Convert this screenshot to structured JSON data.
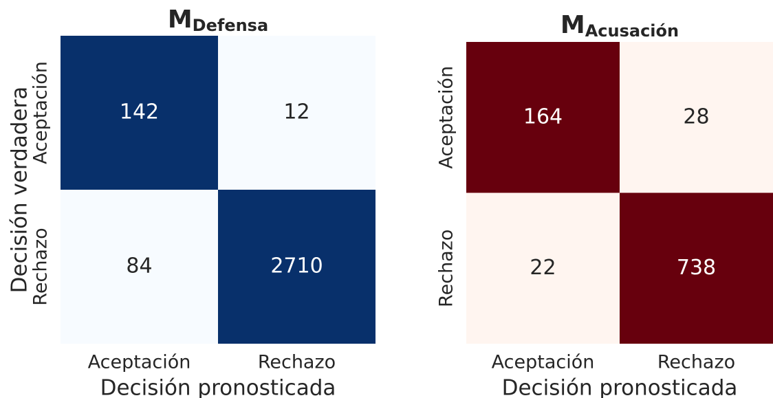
{
  "chart_data": [
    {
      "type": "heatmap",
      "title": "M",
      "title_subscript": "Defensa",
      "x_categories": [
        "Aceptación",
        "Rechazo"
      ],
      "y_categories": [
        "Aceptación",
        "Rechazo"
      ],
      "values": [
        [
          142,
          12
        ],
        [
          84,
          2710
        ]
      ],
      "colors": [
        [
          "#08306b",
          "#f7fbff"
        ],
        [
          "#f7fbff",
          "#08306b"
        ]
      ],
      "xlabel": "Decisión pronosticada",
      "ylabel": "Decisión verdadera"
    },
    {
      "type": "heatmap",
      "title": "M",
      "title_subscript": "Acusación",
      "x_categories": [
        "Aceptación",
        "Rechazo"
      ],
      "y_categories": [
        "Aceptación",
        "Rechazo"
      ],
      "values": [
        [
          164,
          28
        ],
        [
          22,
          738
        ]
      ],
      "colors": [
        [
          "#67000d",
          "#fff5f0"
        ],
        [
          "#fff5f0",
          "#67000d"
        ]
      ],
      "xlabel": "Decisión pronosticada"
    }
  ]
}
